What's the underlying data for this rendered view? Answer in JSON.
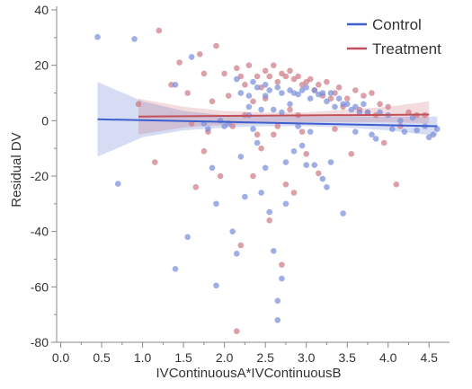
{
  "chart_data": {
    "type": "scatter",
    "xlabel": "IVContinuousA*IVContinuousB",
    "ylabel": "Residual DV",
    "xlim": [
      -0.05,
      4.75
    ],
    "ylim": [
      -80,
      40
    ],
    "xticks": [
      0.0,
      0.5,
      1.0,
      1.5,
      2.0,
      2.5,
      3.0,
      3.5,
      4.0,
      4.5
    ],
    "xtick_labels": [
      "0.0",
      "0.5",
      "1.0",
      "1.5",
      "2.0",
      "2.5",
      "3.0",
      "3.5",
      "4.0",
      "4.5"
    ],
    "yticks": [
      40,
      20,
      0,
      -20,
      -40,
      -60,
      -80
    ],
    "ytick_labels": [
      "40",
      "20",
      "0",
      "-20",
      "-40",
      "-60",
      "-80"
    ],
    "legend_position": "top-right",
    "series": [
      {
        "name": "Control",
        "color": "#3f5fcf",
        "point_color": "#7b8fdc",
        "line": {
          "x": [
            0.45,
            4.6
          ],
          "y": [
            0.5,
            -2.0
          ]
        },
        "band": {
          "x": [
            0.45,
            1.0,
            1.5,
            2.0,
            2.5,
            3.0,
            3.5,
            4.0,
            4.6
          ],
          "upper": [
            14,
            7,
            3.5,
            2,
            1.5,
            1.5,
            1.5,
            1.5,
            1.5
          ],
          "lower": [
            -13,
            -6,
            -3.5,
            -2.5,
            -2,
            -2,
            -2.5,
            -3.5,
            -5.5
          ]
        },
        "points": [
          [
            0.45,
            30.2
          ],
          [
            0.9,
            29.5
          ],
          [
            0.7,
            -22.8
          ],
          [
            1.4,
            13
          ],
          [
            1.4,
            -53.5
          ],
          [
            1.55,
            -42
          ],
          [
            1.6,
            23
          ],
          [
            1.75,
            -1
          ],
          [
            1.8,
            -3
          ],
          [
            1.85,
            -17
          ],
          [
            1.9,
            -30
          ],
          [
            1.9,
            -59.5
          ],
          [
            1.95,
            0
          ],
          [
            2.0,
            -2
          ],
          [
            2.05,
            -1
          ],
          [
            2.1,
            -40
          ],
          [
            2.15,
            -48
          ],
          [
            2.15,
            15
          ],
          [
            2.2,
            10
          ],
          [
            2.2,
            -13
          ],
          [
            2.25,
            -27.5
          ],
          [
            2.3,
            9
          ],
          [
            2.3,
            2
          ],
          [
            2.35,
            14
          ],
          [
            2.35,
            -3
          ],
          [
            2.4,
            12
          ],
          [
            2.4,
            -8
          ],
          [
            2.45,
            -26
          ],
          [
            2.5,
            13
          ],
          [
            2.5,
            -17
          ],
          [
            2.5,
            9
          ],
          [
            2.55,
            11
          ],
          [
            2.55,
            -33
          ],
          [
            2.6,
            -47
          ],
          [
            2.6,
            4
          ],
          [
            2.65,
            12
          ],
          [
            2.65,
            -72
          ],
          [
            2.65,
            -65
          ],
          [
            2.7,
            10
          ],
          [
            2.7,
            3
          ],
          [
            2.75,
            -15
          ],
          [
            2.75,
            -30
          ],
          [
            2.8,
            11
          ],
          [
            2.8,
            6
          ],
          [
            2.85,
            10
          ],
          [
            2.85,
            -11
          ],
          [
            2.9,
            9.5
          ],
          [
            2.9,
            -2
          ],
          [
            2.95,
            11
          ],
          [
            2.95,
            -9
          ],
          [
            3.0,
            12
          ],
          [
            3.0,
            -16
          ],
          [
            3.05,
            8
          ],
          [
            3.1,
            11
          ],
          [
            3.1,
            -16
          ],
          [
            3.15,
            9.5
          ],
          [
            3.2,
            10
          ],
          [
            3.2,
            -21
          ],
          [
            3.25,
            7
          ],
          [
            3.3,
            10
          ],
          [
            3.3,
            -15
          ],
          [
            3.35,
            5
          ],
          [
            3.4,
            8
          ],
          [
            3.45,
            6
          ],
          [
            3.45,
            -33.5
          ],
          [
            3.5,
            6
          ],
          [
            3.55,
            4
          ],
          [
            3.6,
            5
          ],
          [
            3.6,
            -4
          ],
          [
            3.65,
            3
          ],
          [
            3.7,
            6
          ],
          [
            3.75,
            3
          ],
          [
            3.8,
            -5
          ],
          [
            3.85,
            -6.5
          ],
          [
            3.9,
            3
          ],
          [
            4.0,
            2
          ],
          [
            4.05,
            -3
          ],
          [
            4.15,
            0
          ],
          [
            4.2,
            -4
          ],
          [
            4.3,
            1
          ],
          [
            4.35,
            -3.5
          ],
          [
            4.45,
            -2
          ],
          [
            4.5,
            -6
          ],
          [
            4.55,
            -5
          ],
          [
            4.6,
            -3
          ],
          [
            2.3,
            5
          ],
          [
            2.45,
            4
          ],
          [
            3.05,
            -4
          ],
          [
            3.25,
            -24
          ],
          [
            2.7,
            -57
          ]
        ]
      },
      {
        "name": "Treatment",
        "color": "#c0505a",
        "point_color": "#cf7b86",
        "line": {
          "x": [
            0.95,
            4.5
          ],
          "y": [
            1.5,
            2.2
          ]
        },
        "band": {
          "x": [
            0.95,
            1.5,
            2.0,
            2.5,
            3.0,
            3.5,
            4.0,
            4.5
          ],
          "upper": [
            8,
            5,
            3.5,
            3,
            3,
            4,
            5,
            7
          ],
          "lower": [
            -5,
            -2.5,
            -1.5,
            -1,
            -0.5,
            -0.5,
            -0.5,
            -1
          ]
        },
        "points": [
          [
            0.95,
            6
          ],
          [
            1.15,
            -15
          ],
          [
            1.2,
            32.5
          ],
          [
            1.35,
            13
          ],
          [
            1.45,
            21
          ],
          [
            1.55,
            10
          ],
          [
            1.6,
            -1
          ],
          [
            1.65,
            -24
          ],
          [
            1.7,
            24
          ],
          [
            1.75,
            17
          ],
          [
            1.8,
            -4
          ],
          [
            1.85,
            7
          ],
          [
            1.9,
            27
          ],
          [
            1.95,
            -20
          ],
          [
            2.0,
            17
          ],
          [
            2.05,
            9
          ],
          [
            2.1,
            -2
          ],
          [
            2.15,
            19
          ],
          [
            2.15,
            -76
          ],
          [
            2.2,
            -45
          ],
          [
            2.2,
            16
          ],
          [
            2.25,
            13
          ],
          [
            2.3,
            20
          ],
          [
            2.35,
            7
          ],
          [
            2.35,
            -20
          ],
          [
            2.4,
            16
          ],
          [
            2.45,
            12
          ],
          [
            2.45,
            -10
          ],
          [
            2.5,
            18
          ],
          [
            2.5,
            8
          ],
          [
            2.55,
            16
          ],
          [
            2.55,
            -36
          ],
          [
            2.6,
            20
          ],
          [
            2.6,
            -5
          ],
          [
            2.65,
            14
          ],
          [
            2.7,
            17
          ],
          [
            2.7,
            -52
          ],
          [
            2.75,
            16
          ],
          [
            2.75,
            -23
          ],
          [
            2.8,
            18
          ],
          [
            2.8,
            4
          ],
          [
            2.85,
            15
          ],
          [
            2.85,
            -26
          ],
          [
            2.9,
            16
          ],
          [
            2.95,
            13
          ],
          [
            3.0,
            14
          ],
          [
            3.0,
            -12
          ],
          [
            3.05,
            15
          ],
          [
            3.1,
            11
          ],
          [
            3.15,
            13
          ],
          [
            3.2,
            9
          ],
          [
            3.25,
            14
          ],
          [
            3.3,
            8
          ],
          [
            3.35,
            10
          ],
          [
            3.4,
            12
          ],
          [
            3.45,
            5
          ],
          [
            3.5,
            8
          ],
          [
            3.55,
            -12
          ],
          [
            3.6,
            11
          ],
          [
            3.65,
            4
          ],
          [
            3.7,
            9
          ],
          [
            3.75,
            3
          ],
          [
            3.8,
            10
          ],
          [
            3.85,
            2
          ],
          [
            3.9,
            6
          ],
          [
            3.95,
            -8
          ],
          [
            4.0,
            5
          ],
          [
            4.1,
            -23
          ],
          [
            4.15,
            -2
          ],
          [
            4.25,
            3
          ],
          [
            4.35,
            2
          ],
          [
            4.45,
            2
          ],
          [
            2.4,
            -5
          ],
          [
            2.65,
            -2
          ],
          [
            2.9,
            2
          ],
          [
            3.15,
            -19
          ],
          [
            2.95,
            -4
          ],
          [
            1.75,
            -11
          ],
          [
            2.25,
            2
          ],
          [
            3.35,
            -3
          ]
        ]
      }
    ]
  }
}
